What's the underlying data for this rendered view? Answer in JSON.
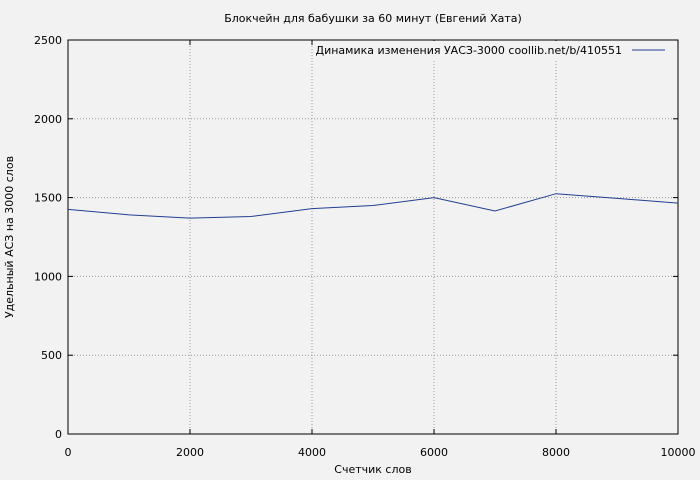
{
  "chart_data": {
    "type": "line",
    "title": "Блокчейн для бабушки за 60 минут (Евгений Хата)",
    "xlabel": "Счетчик слов",
    "ylabel": "Удельный АСЗ на 3000 слов",
    "xlim": [
      0,
      10000
    ],
    "ylim": [
      0,
      2500
    ],
    "x_ticks": [
      0,
      2000,
      4000,
      6000,
      8000,
      10000
    ],
    "y_ticks": [
      0,
      500,
      1000,
      1500,
      2000,
      2500
    ],
    "x_tick_labels": [
      "0",
      "2000",
      "4000",
      "6000",
      "8000",
      "10000"
    ],
    "y_tick_labels": [
      "0",
      "500",
      "1000",
      "1500",
      "2000",
      "2500"
    ],
    "grid": true,
    "legend_position": "top-right",
    "series": [
      {
        "name": "Динамика изменения УАСЗ-3000  coollib.net/b/410551",
        "color": "#1f3f8f",
        "x": [
          0,
          1000,
          2000,
          3000,
          4000,
          5000,
          6000,
          7000,
          8000,
          9000,
          10000
        ],
        "y": [
          1425,
          1390,
          1370,
          1380,
          1430,
          1450,
          1500,
          1415,
          1525,
          1495,
          1465
        ]
      }
    ]
  }
}
